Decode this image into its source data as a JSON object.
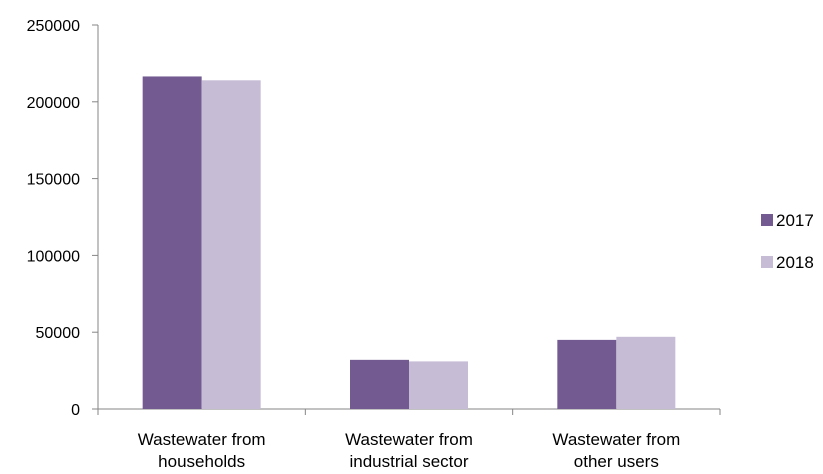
{
  "chart_data": {
    "type": "bar",
    "categories": [
      [
        "Wastewater from",
        "households"
      ],
      [
        "Wastewater from",
        "industrial sector"
      ],
      [
        "Wastewater from",
        "other users"
      ]
    ],
    "series": [
      {
        "name": "2017",
        "color": "#735a91",
        "values": [
          216500,
          32000,
          45000
        ]
      },
      {
        "name": "2018",
        "color": "#c6bcd6",
        "values": [
          214000,
          31000,
          47000
        ]
      }
    ],
    "y_ticks": [
      "0",
      "50000",
      "100000",
      "150000",
      "200000",
      "250000"
    ],
    "ylim": [
      0,
      250000
    ],
    "grid": false,
    "legend": "right",
    "title": "",
    "xlabel": "",
    "ylabel": ""
  }
}
